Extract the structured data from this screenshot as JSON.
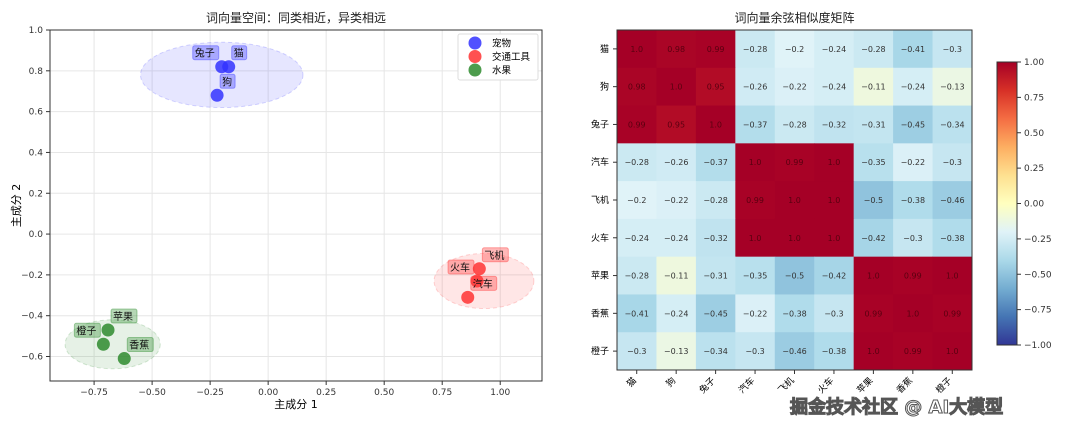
{
  "chart_data": [
    {
      "type": "scatter",
      "title": "词向量空间：同类相近，异类相远",
      "xlabel": "主成分 1",
      "ylabel": "主成分 2",
      "xlim": [
        -0.94,
        1.18
      ],
      "ylim": [
        -0.72,
        1.0
      ],
      "xticks": [
        -0.75,
        -0.5,
        -0.25,
        0,
        0.25,
        0.5,
        0.75,
        1.0
      ],
      "xtick_labels": [
        "−0.75",
        "−0.50",
        "−0.25",
        "0.00",
        "0.25",
        "0.50",
        "0.75",
        "1.00"
      ],
      "yticks": [
        -0.6,
        -0.4,
        -0.2,
        0,
        0.2,
        0.4,
        0.6,
        0.8,
        1.0
      ],
      "ytick_labels": [
        "−0.6",
        "−0.4",
        "−0.2",
        "0.0",
        "0.2",
        "0.4",
        "0.6",
        "0.8",
        "1.0"
      ],
      "grid": true,
      "legend_placement": "top-right",
      "series": [
        {
          "name": "宠物",
          "color": "#3333ff",
          "points": [
            {
              "label": "猫",
              "x": -0.17,
              "y": 0.82
            },
            {
              "label": "兔子",
              "x": -0.2,
              "y": 0.82
            },
            {
              "label": "狗",
              "x": -0.22,
              "y": 0.68
            }
          ],
          "ellipse": {
            "cx": -0.2,
            "cy": 0.78,
            "w": 0.7,
            "h": 0.32
          }
        },
        {
          "name": "交通工具",
          "color": "#ff3333",
          "points": [
            {
              "label": "飞机",
              "x": 0.91,
              "y": -0.17
            },
            {
              "label": "火车",
              "x": 0.9,
              "y": -0.23
            },
            {
              "label": "汽车",
              "x": 0.86,
              "y": -0.31
            }
          ],
          "ellipse": {
            "cx": 0.93,
            "cy": -0.23,
            "w": 0.43,
            "h": 0.27
          }
        },
        {
          "name": "水果",
          "color": "#2e8b2e",
          "points": [
            {
              "label": "苹果",
              "x": -0.69,
              "y": -0.47
            },
            {
              "label": "橙子",
              "x": -0.71,
              "y": -0.54
            },
            {
              "label": "香蕉",
              "x": -0.62,
              "y": -0.61
            }
          ],
          "ellipse": {
            "cx": -0.67,
            "cy": -0.54,
            "w": 0.41,
            "h": 0.24
          }
        }
      ]
    },
    {
      "type": "heatmap",
      "title": "词向量余弦相似度矩阵",
      "labels": [
        "猫",
        "狗",
        "兔子",
        "汽车",
        "飞机",
        "火车",
        "苹果",
        "香蕉",
        "橙子"
      ],
      "values": [
        [
          1.0,
          0.98,
          0.99,
          -0.28,
          -0.2,
          -0.24,
          -0.28,
          -0.41,
          -0.3
        ],
        [
          0.98,
          1.0,
          0.95,
          -0.26,
          -0.22,
          -0.24,
          -0.11,
          -0.24,
          -0.13
        ],
        [
          0.99,
          0.95,
          1.0,
          -0.37,
          -0.28,
          -0.32,
          -0.31,
          -0.45,
          -0.34
        ],
        [
          -0.28,
          -0.26,
          -0.37,
          1.0,
          0.99,
          1.0,
          -0.35,
          -0.22,
          -0.3
        ],
        [
          -0.2,
          -0.22,
          -0.28,
          0.99,
          1.0,
          1.0,
          -0.5,
          -0.38,
          -0.46
        ],
        [
          -0.24,
          -0.24,
          -0.32,
          1.0,
          1.0,
          1.0,
          -0.42,
          -0.3,
          -0.38
        ],
        [
          -0.28,
          -0.11,
          -0.31,
          -0.35,
          -0.5,
          -0.42,
          1.0,
          0.99,
          1.0
        ],
        [
          -0.41,
          -0.24,
          -0.45,
          -0.22,
          -0.38,
          -0.3,
          0.99,
          1.0,
          0.99
        ],
        [
          -0.3,
          -0.13,
          -0.34,
          -0.3,
          -0.46,
          -0.38,
          1.0,
          0.99,
          1.0
        ]
      ],
      "colorbar": {
        "range": [
          -1,
          1
        ],
        "ticks": [
          1.0,
          0.75,
          0.5,
          0.25,
          0,
          -0.25,
          -0.5,
          -0.75,
          -1.0
        ],
        "tick_labels": [
          "1.00",
          "0.75",
          "0.50",
          "0.25",
          "0.00",
          "−0.25",
          "−0.50",
          "−0.75",
          "−1.00"
        ],
        "colormap": "RdYlBu_r"
      }
    }
  ],
  "watermark": "掘金技术社区 @ AI大模型"
}
